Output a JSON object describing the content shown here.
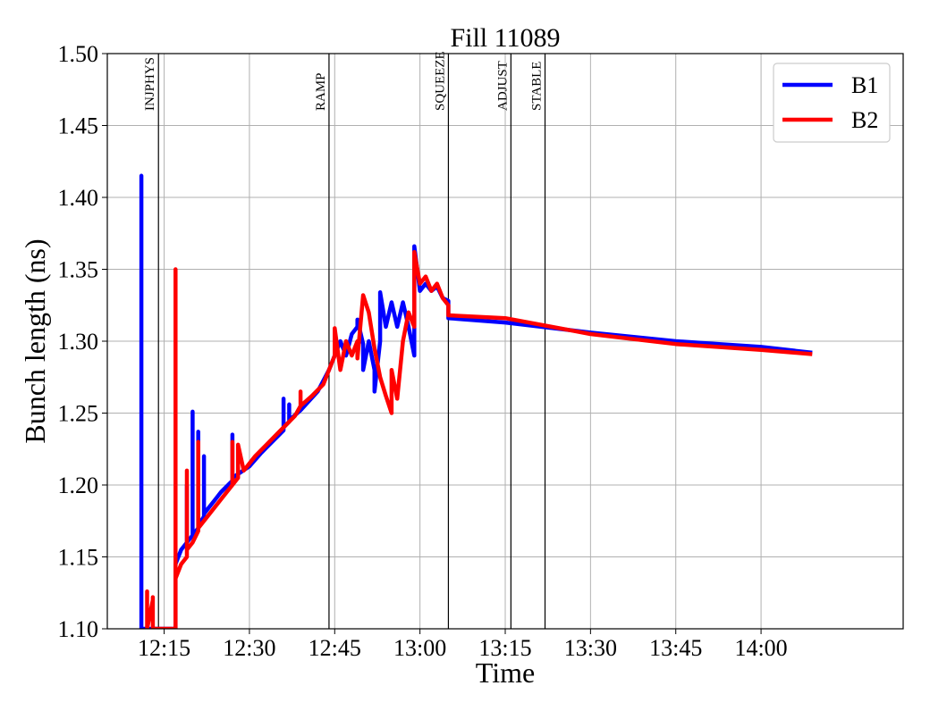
{
  "chart_data": {
    "type": "line",
    "title": "Fill 11089",
    "xlabel": "Time",
    "ylabel": "Bunch length (ns)",
    "ylim": [
      1.1,
      1.5
    ],
    "xlim": [
      "12:05",
      "14:25"
    ],
    "grid": true,
    "legend_position": "top-right",
    "x_ticks": [
      "12:15",
      "12:30",
      "12:45",
      "13:00",
      "13:15",
      "13:30",
      "13:45",
      "14:00"
    ],
    "y_ticks": [
      "1.10",
      "1.15",
      "1.20",
      "1.25",
      "1.30",
      "1.35",
      "1.40",
      "1.45",
      "1.50"
    ],
    "phases": [
      {
        "name": "INJPHYS",
        "time": "12:14"
      },
      {
        "name": "RAMP",
        "time": "12:44"
      },
      {
        "name": "SQUEEZE",
        "time": "13:05"
      },
      {
        "name": "ADJUST",
        "time": "13:16"
      },
      {
        "name": "STABLE",
        "time": "13:22"
      }
    ],
    "series": [
      {
        "name": "B1",
        "color": "#0000ff",
        "points": [
          [
            "12:11",
            1.1
          ],
          [
            "12:11",
            1.415
          ],
          [
            "12:11",
            1.1
          ],
          [
            "12:17",
            1.1
          ],
          [
            "12:17",
            1.145
          ],
          [
            "12:18",
            1.155
          ],
          [
            "12:19",
            1.16
          ],
          [
            "12:19",
            1.2
          ],
          [
            "12:19",
            1.16
          ],
          [
            "12:20",
            1.165
          ],
          [
            "12:20",
            1.251
          ],
          [
            "12:20",
            1.165
          ],
          [
            "12:21",
            1.17
          ],
          [
            "12:21",
            1.237
          ],
          [
            "12:21",
            1.172
          ],
          [
            "12:22",
            1.178
          ],
          [
            "12:22",
            1.22
          ],
          [
            "12:22",
            1.18
          ],
          [
            "12:24",
            1.19
          ],
          [
            "12:25",
            1.195
          ],
          [
            "12:27",
            1.203
          ],
          [
            "12:27",
            1.235
          ],
          [
            "12:27",
            1.205
          ],
          [
            "12:30",
            1.213
          ],
          [
            "12:32",
            1.222
          ],
          [
            "12:33",
            1.226
          ],
          [
            "12:35",
            1.234
          ],
          [
            "12:36",
            1.238
          ],
          [
            "12:36",
            1.26
          ],
          [
            "12:36",
            1.24
          ],
          [
            "12:37",
            1.244
          ],
          [
            "12:37",
            1.256
          ],
          [
            "12:37",
            1.245
          ],
          [
            "12:39",
            1.252
          ],
          [
            "12:42",
            1.265
          ],
          [
            "12:44",
            1.28
          ],
          [
            "12:45",
            1.29
          ],
          [
            "12:46",
            1.3
          ],
          [
            "12:47",
            1.29
          ],
          [
            "12:48",
            1.305
          ],
          [
            "12:49",
            1.31
          ],
          [
            "12:49",
            1.315
          ],
          [
            "12:50",
            1.298
          ],
          [
            "12:50",
            1.28
          ],
          [
            "12:51",
            1.3
          ],
          [
            "12:52",
            1.28
          ],
          [
            "12:52",
            1.265
          ],
          [
            "12:53",
            1.3
          ],
          [
            "12:53",
            1.334
          ],
          [
            "12:54",
            1.31
          ],
          [
            "12:55",
            1.327
          ],
          [
            "12:56",
            1.31
          ],
          [
            "12:57",
            1.327
          ],
          [
            "12:58",
            1.31
          ],
          [
            "12:59",
            1.29
          ],
          [
            "12:59",
            1.366
          ],
          [
            "13:00",
            1.335
          ],
          [
            "13:01",
            1.34
          ],
          [
            "13:02",
            1.335
          ],
          [
            "13:03",
            1.338
          ],
          [
            "13:04",
            1.33
          ],
          [
            "13:05",
            1.328
          ],
          [
            "13:05",
            1.316
          ],
          [
            "13:15",
            1.313
          ],
          [
            "13:30",
            1.306
          ],
          [
            "13:45",
            1.3
          ],
          [
            "14:00",
            1.296
          ],
          [
            "14:09",
            1.292
          ]
        ]
      },
      {
        "name": "B2",
        "color": "#ff0000",
        "points": [
          [
            "12:12",
            1.1
          ],
          [
            "12:12",
            1.126
          ],
          [
            "12:12",
            1.1
          ],
          [
            "12:13",
            1.12
          ],
          [
            "12:13",
            1.1
          ],
          [
            "12:13",
            1.122
          ],
          [
            "12:13",
            1.1
          ],
          [
            "12:17",
            1.1
          ],
          [
            "12:17",
            1.35
          ],
          [
            "12:17",
            1.135
          ],
          [
            "12:18",
            1.145
          ],
          [
            "12:19",
            1.15
          ],
          [
            "12:19",
            1.21
          ],
          [
            "12:19",
            1.155
          ],
          [
            "12:20",
            1.16
          ],
          [
            "12:21",
            1.168
          ],
          [
            "12:21",
            1.23
          ],
          [
            "12:21",
            1.17
          ],
          [
            "12:23",
            1.18
          ],
          [
            "12:25",
            1.19
          ],
          [
            "12:27",
            1.2
          ],
          [
            "12:27",
            1.23
          ],
          [
            "12:27",
            1.2
          ],
          [
            "12:28",
            1.205
          ],
          [
            "12:28",
            1.228
          ],
          [
            "12:29",
            1.21
          ],
          [
            "12:31",
            1.22
          ],
          [
            "12:33",
            1.228
          ],
          [
            "12:35",
            1.236
          ],
          [
            "12:38",
            1.248
          ],
          [
            "12:39",
            1.255
          ],
          [
            "12:39",
            1.265
          ],
          [
            "12:39",
            1.255
          ],
          [
            "12:41",
            1.262
          ],
          [
            "12:43",
            1.27
          ],
          [
            "12:44",
            1.28
          ],
          [
            "12:45",
            1.29
          ],
          [
            "12:45",
            1.309
          ],
          [
            "12:46",
            1.28
          ],
          [
            "12:47",
            1.3
          ],
          [
            "12:48",
            1.29
          ],
          [
            "12:49",
            1.3
          ],
          [
            "12:49",
            1.288
          ],
          [
            "12:50",
            1.332
          ],
          [
            "12:51",
            1.32
          ],
          [
            "12:52",
            1.295
          ],
          [
            "12:53",
            1.275
          ],
          [
            "12:54",
            1.262
          ],
          [
            "12:55",
            1.25
          ],
          [
            "12:55",
            1.28
          ],
          [
            "12:56",
            1.26
          ],
          [
            "12:57",
            1.3
          ],
          [
            "12:58",
            1.32
          ],
          [
            "12:59",
            1.31
          ],
          [
            "12:59",
            1.362
          ],
          [
            "13:00",
            1.34
          ],
          [
            "13:01",
            1.345
          ],
          [
            "13:02",
            1.335
          ],
          [
            "13:03",
            1.34
          ],
          [
            "13:04",
            1.33
          ],
          [
            "13:05",
            1.325
          ],
          [
            "13:05",
            1.318
          ],
          [
            "13:15",
            1.316
          ],
          [
            "13:30",
            1.305
          ],
          [
            "13:45",
            1.298
          ],
          [
            "14:00",
            1.294
          ],
          [
            "14:09",
            1.291
          ]
        ]
      }
    ]
  }
}
